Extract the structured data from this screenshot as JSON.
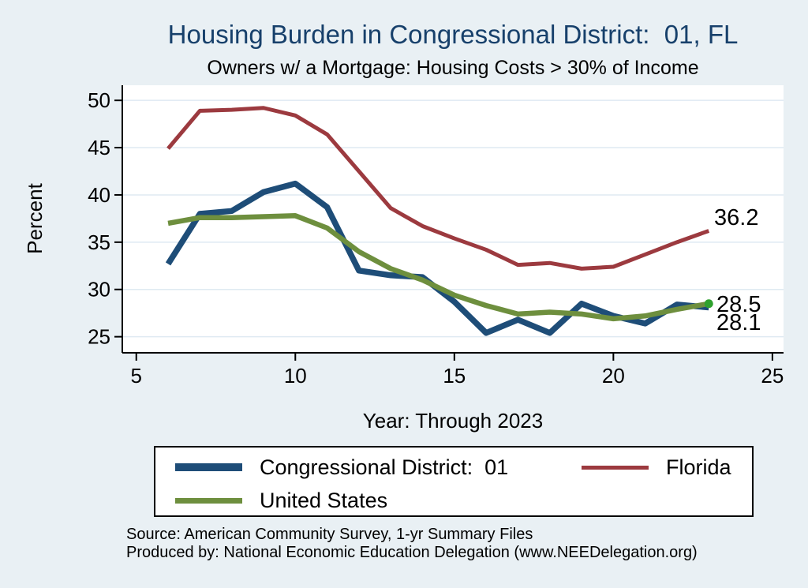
{
  "title": "Housing Burden in Congressional District:  01, FL",
  "subtitle": "Owners w/ a Mortgage: Housing Costs > 30% of Income",
  "colors": {
    "background": "#e9f0f4",
    "title": "#17406b",
    "grid": "#dfeaf2",
    "axis": "#000000",
    "district": "#1e4d78",
    "florida": "#9c3a3f",
    "us": "#6e8f3e",
    "us_end_marker": "#2fa12e"
  },
  "chart_data": {
    "type": "line",
    "title": "Housing Burden in Congressional District:  01, FL",
    "subtitle": "Owners w/ a Mortgage: Housing Costs > 30% of Income",
    "xlabel": "Year: Through 2023",
    "ylabel": "Percent",
    "x_ticks": [
      5,
      10,
      15,
      20,
      25
    ],
    "y_ticks": [
      25,
      30,
      35,
      40,
      45,
      50
    ],
    "xlim": [
      4.56,
      25.35
    ],
    "ylim": [
      23.3,
      51.6
    ],
    "grid": true,
    "x": [
      6,
      7,
      8,
      9,
      10,
      11,
      12,
      13,
      14,
      15,
      16,
      17,
      18,
      19,
      20,
      21,
      22,
      23
    ],
    "series": [
      {
        "key": "district",
        "name": "Congressional District:  01",
        "color": "#1e4d78",
        "width": 7.5,
        "values": [
          32.7,
          38.0,
          38.3,
          40.3,
          41.2,
          38.7,
          32.0,
          31.5,
          31.3,
          28.7,
          25.4,
          26.8,
          25.4,
          28.5,
          27.2,
          26.4,
          28.4,
          28.1
        ]
      },
      {
        "key": "florida",
        "name": "Florida",
        "color": "#9c3a3f",
        "width": 5,
        "values": [
          44.9,
          48.9,
          49.0,
          49.2,
          48.4,
          46.4,
          42.5,
          38.6,
          36.7,
          35.4,
          34.2,
          32.6,
          32.8,
          32.2,
          32.4,
          33.7,
          35.0,
          36.2
        ]
      },
      {
        "key": "us",
        "name": "United States",
        "color": "#6e8f3e",
        "width": 6.5,
        "end_marker_color": "#2fa12e",
        "values": [
          37.0,
          37.6,
          37.6,
          37.7,
          37.8,
          36.5,
          34.0,
          32.2,
          31.0,
          29.4,
          28.3,
          27.4,
          27.6,
          27.4,
          26.9,
          27.2,
          27.9,
          28.5
        ]
      }
    ],
    "end_labels": [
      {
        "text": "36.2",
        "series": "florida"
      },
      {
        "text": "28.5",
        "series": "us"
      },
      {
        "text": "28.1",
        "series": "district"
      }
    ],
    "legend_position": "bottom"
  },
  "legend": {
    "items": [
      {
        "label": "Congressional District:  01",
        "color": "#1e4d78",
        "thickness": 10
      },
      {
        "label": "Florida",
        "color": "#9c3a3f",
        "thickness": 5
      },
      {
        "label": "United States",
        "color": "#6e8f3e",
        "thickness": 7
      }
    ]
  },
  "footer": {
    "line1": "Source: American Community Survey, 1-yr Summary Files",
    "line2": "Produced by: National Economic Education Delegation (www.NEEDelegation.org)"
  }
}
